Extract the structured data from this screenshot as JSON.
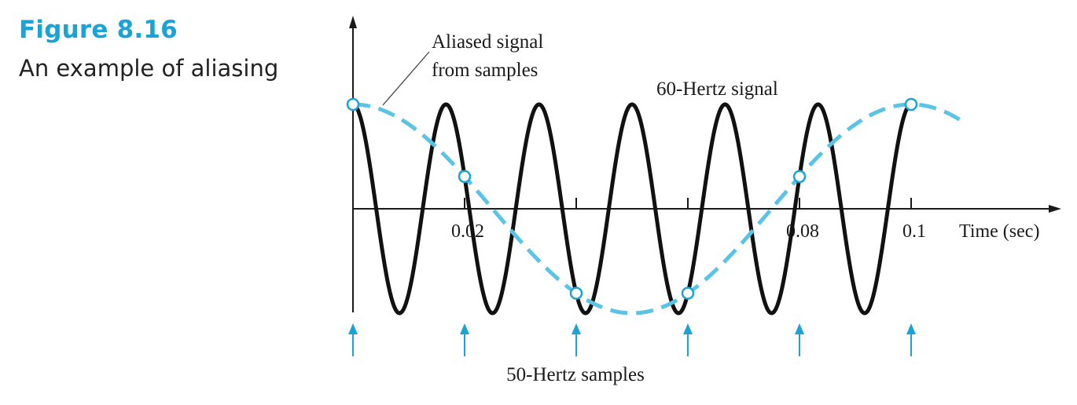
{
  "figure": {
    "label": "Figure 8.16",
    "caption": "An example of aliasing"
  },
  "chart_data": {
    "type": "line",
    "xlabel": "Time (sec)",
    "xlim": [
      0,
      0.109
    ],
    "ylim": [
      -1,
      1
    ],
    "x_ticks": [
      0.02,
      0.04,
      0.06,
      0.08,
      0.1
    ],
    "x_tick_labels": [
      "0.02",
      "",
      "",
      "0.08",
      "0.1"
    ],
    "series": [
      {
        "name": "60-Hertz signal",
        "kind": "solid",
        "frequency_hz": 60,
        "amplitude": 1,
        "x_range": [
          0,
          0.1
        ],
        "color": "#111111"
      },
      {
        "name": "Aliased signal from samples",
        "kind": "dashed",
        "frequency_hz": 10,
        "amplitude": 1,
        "x_range": [
          0,
          0.109
        ],
        "color": "#5ac4e6"
      }
    ],
    "samples": {
      "label": "50-Hertz samples",
      "rate_hz": 50,
      "t": [
        0,
        0.02,
        0.04,
        0.06,
        0.08,
        0.1
      ],
      "color": "#1aa3d6"
    },
    "annotations": {
      "aliased_line1": "Aliased signal",
      "aliased_line2": "from samples",
      "signal_label": "60-Hertz signal"
    },
    "grid": false,
    "legend": "none"
  }
}
